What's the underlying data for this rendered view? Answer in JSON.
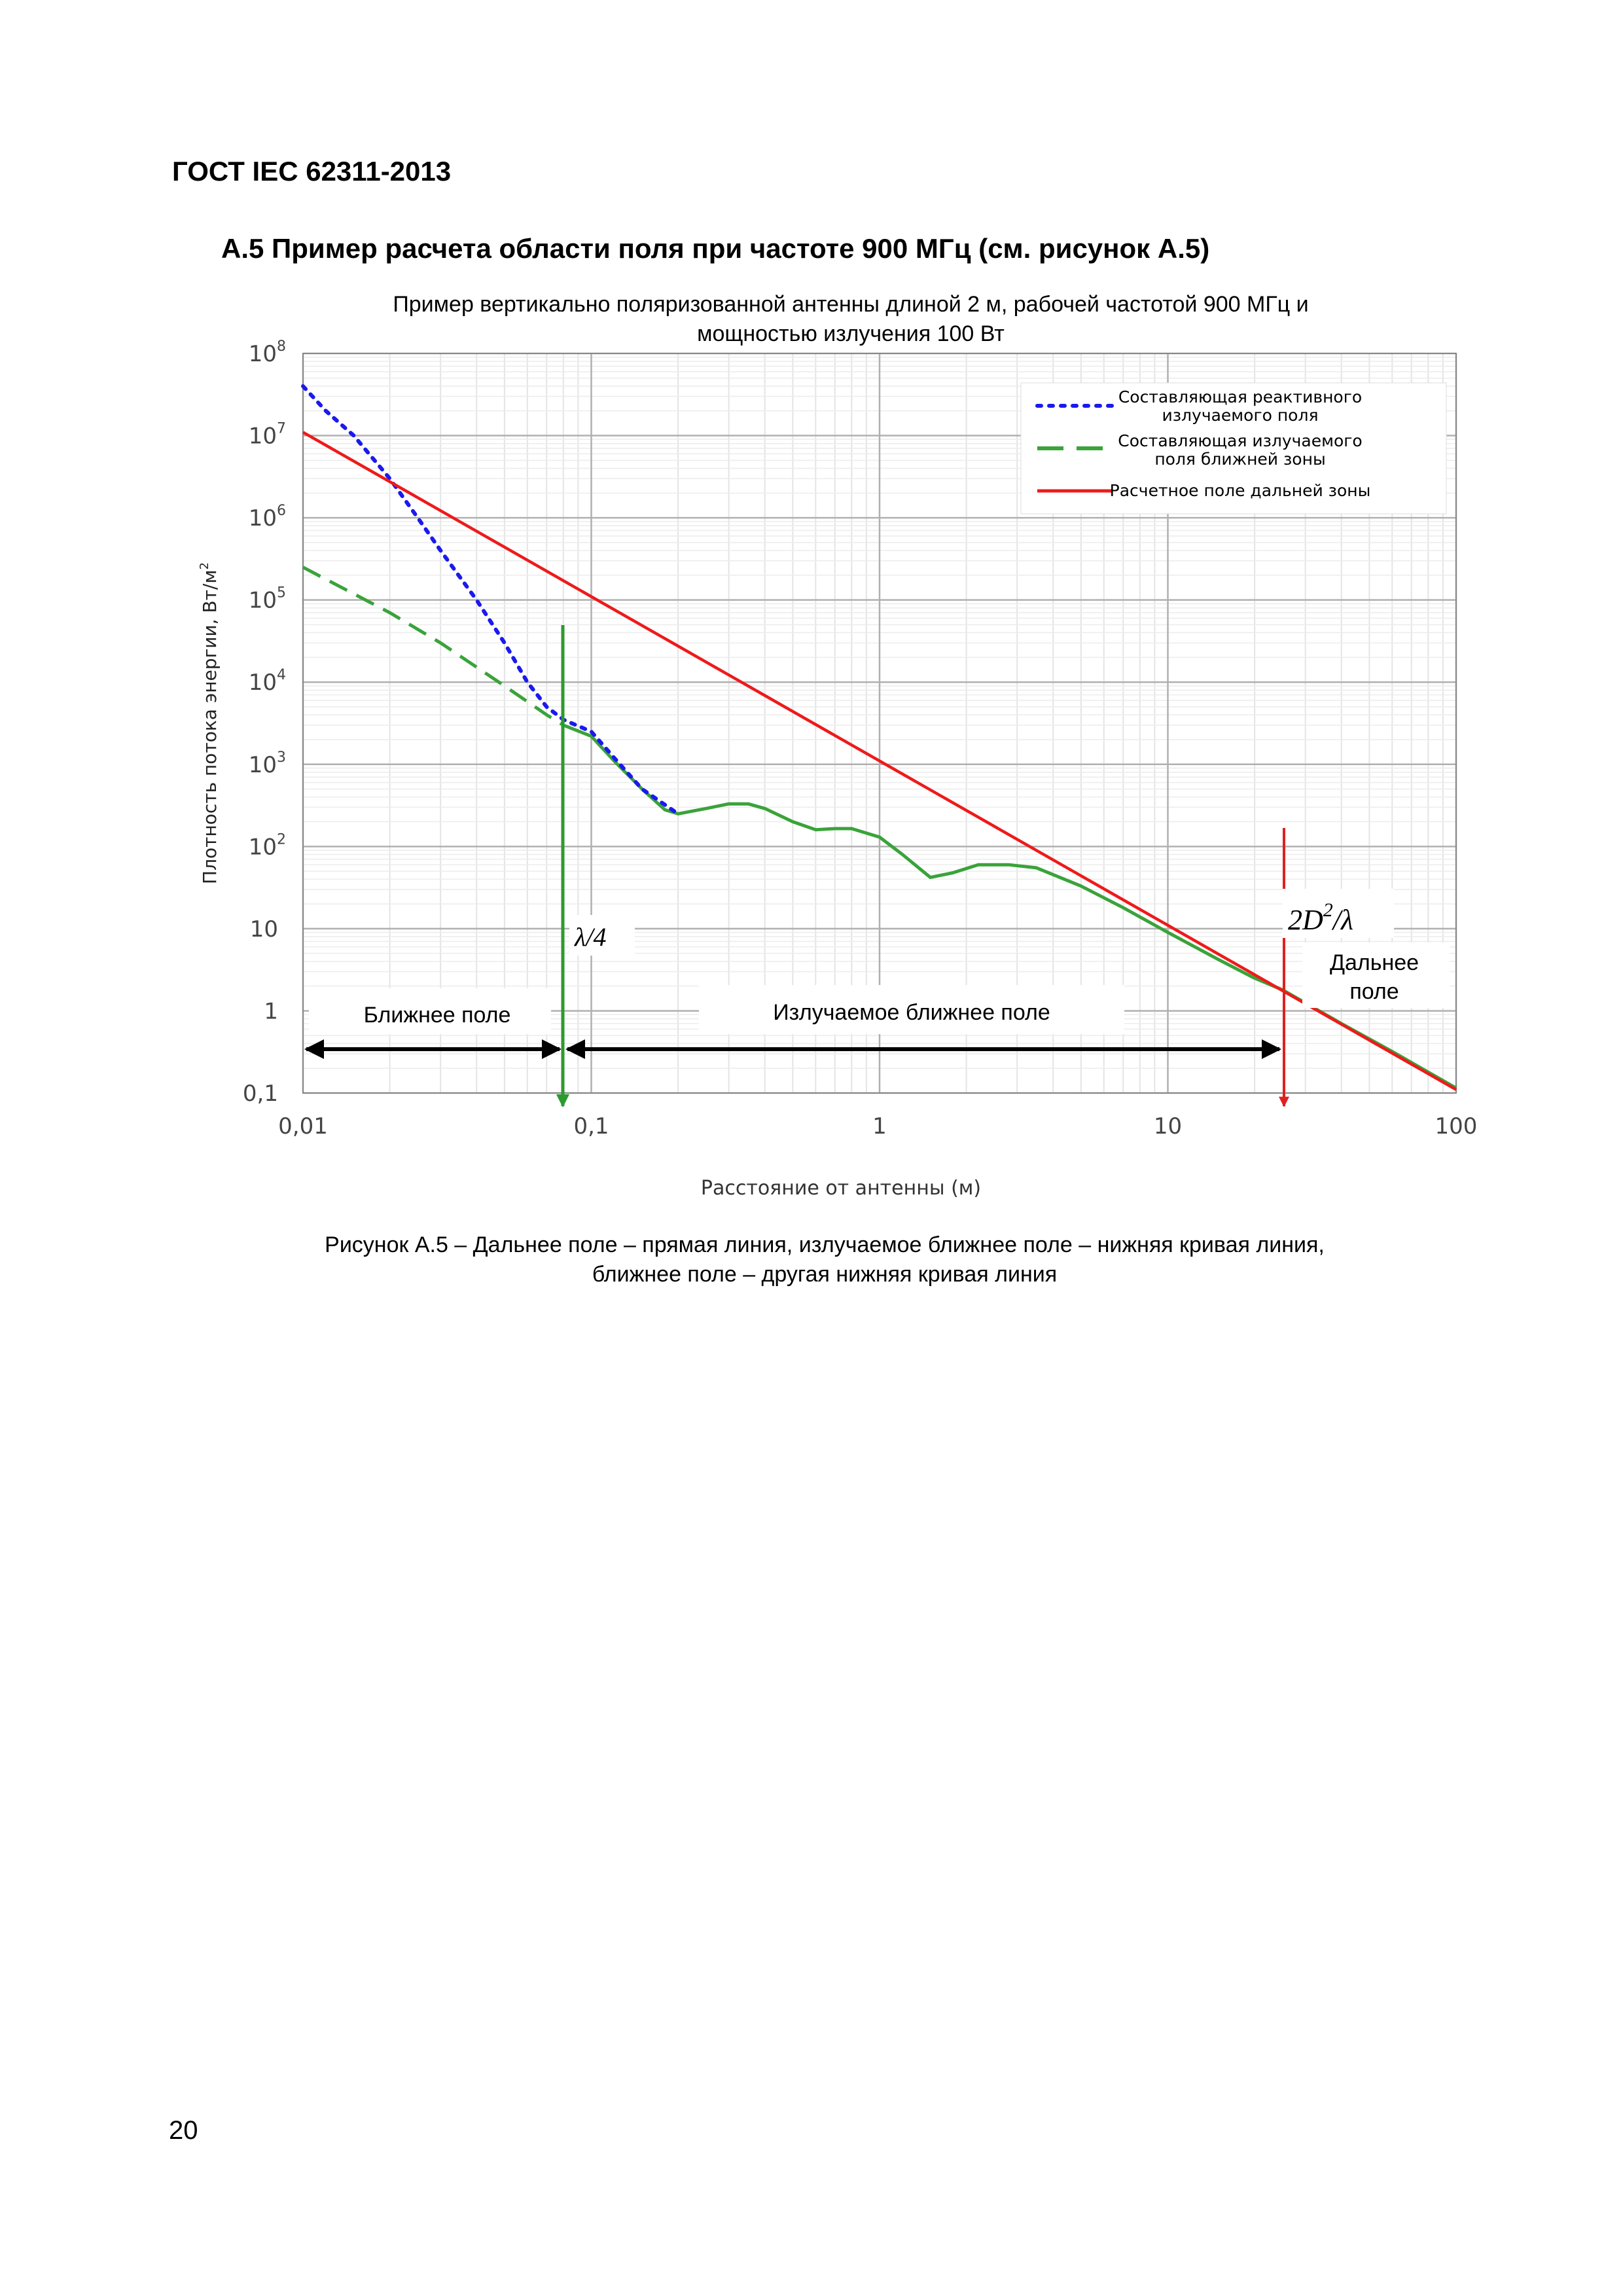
{
  "header": {
    "doc_id": "ГОСТ IEC 62311-2013"
  },
  "section": {
    "title": "А.5 Пример расчета области поля при частоте 900 МГц (см. рисунок А.5)"
  },
  "chart_data": {
    "type": "line",
    "title": "Пример вертикально поляризованной антенны длиной 2 м, рабочей частотой 900 МГц и мощностью излучения 100 Вт",
    "title_lines": [
      "Пример вертикально поляризованной антенны длиной 2 м, рабочей частотой 900 МГц и",
      "мощностью излучения 100 Вт"
    ],
    "xlabel": "Расстояние от антенны (м)",
    "ylabel": "Плотность потока энергии, Вт/м²",
    "ylabel_main": "Плотность потока энергии, Вт/м",
    "ylabel_sup": "2",
    "x_scale": "log",
    "y_scale": "log",
    "xlim": [
      0.01,
      100
    ],
    "ylim": [
      0.1,
      100000000
    ],
    "grid": true,
    "legend_position": "top-right",
    "x_ticks": [
      {
        "value": 0.01,
        "label": "0,01"
      },
      {
        "value": 0.1,
        "label": "0,1"
      },
      {
        "value": 1,
        "label": "1"
      },
      {
        "value": 10,
        "label": "10"
      },
      {
        "value": 100,
        "label": "100"
      }
    ],
    "y_ticks": [
      {
        "value": 0.1,
        "label": "0,1",
        "sup": ""
      },
      {
        "value": 1,
        "label": "1",
        "sup": ""
      },
      {
        "value": 10,
        "label": "10",
        "sup": ""
      },
      {
        "value": 100,
        "label": "10",
        "sup": "2"
      },
      {
        "value": 1000,
        "label": "10",
        "sup": "3"
      },
      {
        "value": 10000,
        "label": "10",
        "sup": "4"
      },
      {
        "value": 100000,
        "label": "10",
        "sup": "5"
      },
      {
        "value": 1000000,
        "label": "10",
        "sup": "6"
      },
      {
        "value": 10000000,
        "label": "10",
        "sup": "7"
      },
      {
        "value": 100000000,
        "label": "10",
        "sup": "8"
      }
    ],
    "series": [
      {
        "name": "Составляющая реактивного излучаемого поля",
        "legend_lines": [
          "Составляющая реактивного",
          "излучаемого поля"
        ],
        "color": "#1a1aee",
        "style": "dotted",
        "points": [
          [
            0.01,
            40000000
          ],
          [
            0.012,
            20000000
          ],
          [
            0.015,
            10000000
          ],
          [
            0.02,
            3000000
          ],
          [
            0.025,
            1000000
          ],
          [
            0.03,
            400000
          ],
          [
            0.04,
            100000
          ],
          [
            0.05,
            30000
          ],
          [
            0.06,
            10000
          ],
          [
            0.07,
            5000
          ],
          [
            0.08,
            3500
          ],
          [
            0.1,
            2500
          ],
          [
            0.12,
            1200
          ],
          [
            0.15,
            500
          ],
          [
            0.2,
            250
          ]
        ]
      },
      {
        "name": "Составляющая излучаемого поля ближней зоны",
        "legend_lines": [
          "Составляющая излучаемого",
          "поля ближней зоны"
        ],
        "color": "#3aa33a",
        "style": "dashed-solid",
        "points": [
          [
            0.01,
            250000
          ],
          [
            0.02,
            70000
          ],
          [
            0.03,
            30000
          ],
          [
            0.05,
            9000
          ],
          [
            0.07,
            4000
          ],
          [
            0.08,
            3000
          ],
          [
            0.1,
            2200
          ],
          [
            0.12,
            1100
          ],
          [
            0.15,
            500
          ],
          [
            0.18,
            280
          ],
          [
            0.2,
            250
          ],
          [
            0.25,
            290
          ],
          [
            0.3,
            330
          ],
          [
            0.35,
            330
          ],
          [
            0.4,
            290
          ],
          [
            0.5,
            200
          ],
          [
            0.6,
            160
          ],
          [
            0.7,
            165
          ],
          [
            0.8,
            165
          ],
          [
            1.0,
            130
          ],
          [
            1.2,
            80
          ],
          [
            1.5,
            42
          ],
          [
            1.8,
            48
          ],
          [
            2.2,
            60
          ],
          [
            2.8,
            60
          ],
          [
            3.5,
            55
          ],
          [
            5,
            33
          ],
          [
            7,
            18
          ],
          [
            10,
            9
          ],
          [
            15,
            4.2
          ],
          [
            20,
            2.5
          ],
          [
            25,
            1.8
          ],
          [
            40,
            0.7
          ],
          [
            60,
            0.32
          ],
          [
            100,
            0.115
          ]
        ]
      },
      {
        "name": "Расчетное поле дальней зоны",
        "legend_lines": [
          "Расчетное поле дальней зоны"
        ],
        "color": "#ee1a1a",
        "style": "solid",
        "points": [
          [
            0.01,
            11000000
          ],
          [
            100,
            0.11
          ]
        ]
      }
    ],
    "annotations": [
      {
        "text": "Ближнее поле",
        "x_from": 0.01,
        "x_to": 0.077
      },
      {
        "text": "Излучаемое ближнее поле",
        "x_from": 0.077,
        "x_to": 24
      },
      {
        "text": "λ/4",
        "x": 0.077,
        "color": "#2d9a2d"
      },
      {
        "text": "2D²/λ",
        "x": 24,
        "color": "#e02020"
      },
      {
        "text": "Дальнее поле",
        "x_from": 24,
        "x_to": 100
      }
    ],
    "annotation_labels": {
      "near": "Ближнее поле",
      "radiating": "Излучаемое ближнее поле",
      "far_line1": "Дальнее",
      "far_line2": "поле",
      "lambda4": "λ/4",
      "twod2_main": "2D",
      "twod2_sup": "2",
      "twod2_tail": "/λ"
    }
  },
  "caption": {
    "line1": "Рисунок А.5 – Дальнее поле – прямая линия, излучаемое ближнее поле – нижняя кривая линия,",
    "line2": "ближнее поле – другая нижняя кривая линия"
  },
  "page": {
    "number": "20"
  }
}
